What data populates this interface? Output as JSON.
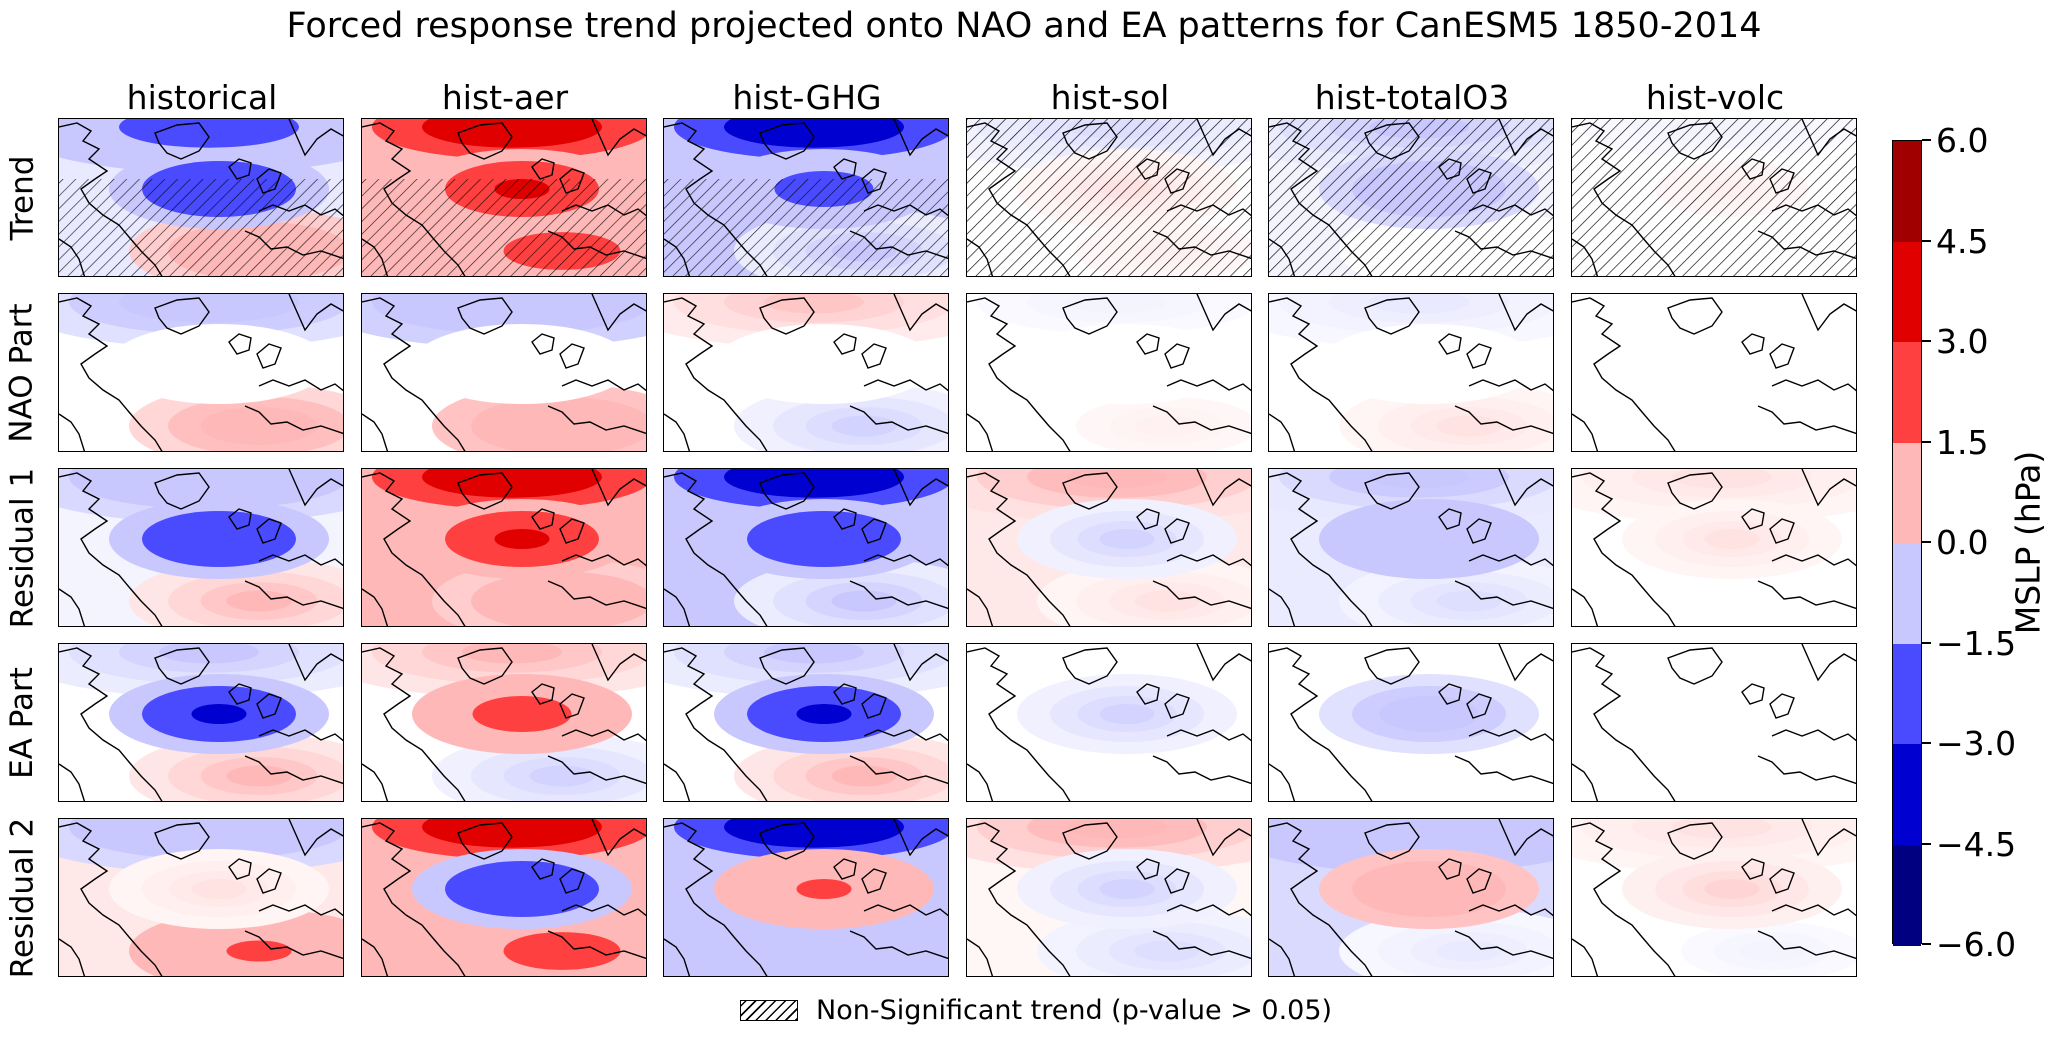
{
  "title": "Forced response trend projected onto NAO and EA patterns for CanESM5 1850-2014",
  "columns": [
    "historical",
    "hist-aer",
    "hist-GHG",
    "hist-sol",
    "hist-totalO3",
    "hist-volc"
  ],
  "rows": [
    "Trend",
    "NAO Part",
    "Residual 1",
    "EA Part",
    "Residual 2"
  ],
  "colorbar": {
    "label": "MSLP (hPa)",
    "ticks": [
      "6.0",
      "4.5",
      "3.0",
      "1.5",
      "0.0",
      "−1.5",
      "−3.0",
      "−4.5",
      "−6.0"
    ],
    "colors_top_to_bottom": [
      "#a00000",
      "#e00000",
      "#ff4040",
      "#ffb8b8",
      "#c8c8ff",
      "#4a4aff",
      "#0000d0",
      "#000080"
    ]
  },
  "legend": {
    "label": "Non-Significant trend (p-value > 0.05)"
  },
  "chart_data": {
    "type": "heatmap",
    "variable": "MSLP (hPa)",
    "vmin": -6.0,
    "vmax": 6.0,
    "columns": [
      "historical",
      "hist-aer",
      "hist-GHG",
      "hist-sol",
      "hist-totalO3",
      "hist-volc"
    ],
    "rows": [
      "Trend",
      "NAO Part",
      "Residual 1",
      "EA Part",
      "Residual 2"
    ],
    "hatching_rows": [
      "Trend"
    ],
    "panels": [
      [
        {
          "north": -2.0,
          "central": -3.0,
          "south": 1.0,
          "hatched": "partial"
        },
        {
          "north": 4.0,
          "central": 3.0,
          "south": 2.0,
          "hatched": "partial"
        },
        {
          "north": -4.0,
          "central": -2.5,
          "south": -0.5,
          "hatched": "partial"
        },
        {
          "north": -0.3,
          "central": 0.2,
          "south": 0.1,
          "hatched": "full"
        },
        {
          "north": -0.5,
          "central": -1.0,
          "south": 0.0,
          "hatched": "full"
        },
        {
          "north": -0.1,
          "central": 0.1,
          "south": 0.0,
          "hatched": "full"
        }
      ],
      [
        {
          "north": -0.8,
          "central": 0.0,
          "south": 0.8
        },
        {
          "north": -1.2,
          "central": 0.0,
          "south": 1.2
        },
        {
          "north": 0.4,
          "central": 0.0,
          "south": -0.4
        },
        {
          "north": -0.1,
          "central": 0.0,
          "south": 0.1
        },
        {
          "north": -0.2,
          "central": 0.0,
          "south": 0.2
        },
        {
          "north": 0.0,
          "central": 0.0,
          "south": 0.0
        }
      ],
      [
        {
          "north": -1.0,
          "central": -3.0,
          "south": 0.5
        },
        {
          "north": 4.0,
          "central": 3.0,
          "south": 1.0
        },
        {
          "north": -4.0,
          "central": -3.0,
          "south": -0.5
        },
        {
          "north": 0.6,
          "central": -0.4,
          "south": 0.2
        },
        {
          "north": -0.6,
          "central": -1.5,
          "south": -0.3
        },
        {
          "north": 0.2,
          "central": 0.2,
          "south": 0.0
        }
      ],
      [
        {
          "north": -0.5,
          "central": -3.2,
          "south": 0.5
        },
        {
          "north": 0.5,
          "central": 2.5,
          "south": -0.4
        },
        {
          "north": -0.5,
          "central": -3.2,
          "south": 0.5
        },
        {
          "north": 0.0,
          "central": -0.4,
          "south": 0.0
        },
        {
          "north": 0.0,
          "central": -0.8,
          "south": 0.0
        },
        {
          "north": 0.0,
          "central": 0.0,
          "south": 0.0
        }
      ],
      [
        {
          "north": -1.0,
          "central": 0.2,
          "south": 1.8
        },
        {
          "north": 4.0,
          "central": -3.0,
          "south": 2.5
        },
        {
          "north": -4.0,
          "central": 1.5,
          "south": -1.5
        },
        {
          "north": 0.6,
          "central": -0.4,
          "south": -0.3
        },
        {
          "north": -1.5,
          "central": 1.2,
          "south": -0.2
        },
        {
          "north": 0.2,
          "central": 0.3,
          "south": -0.1
        }
      ]
    ]
  }
}
